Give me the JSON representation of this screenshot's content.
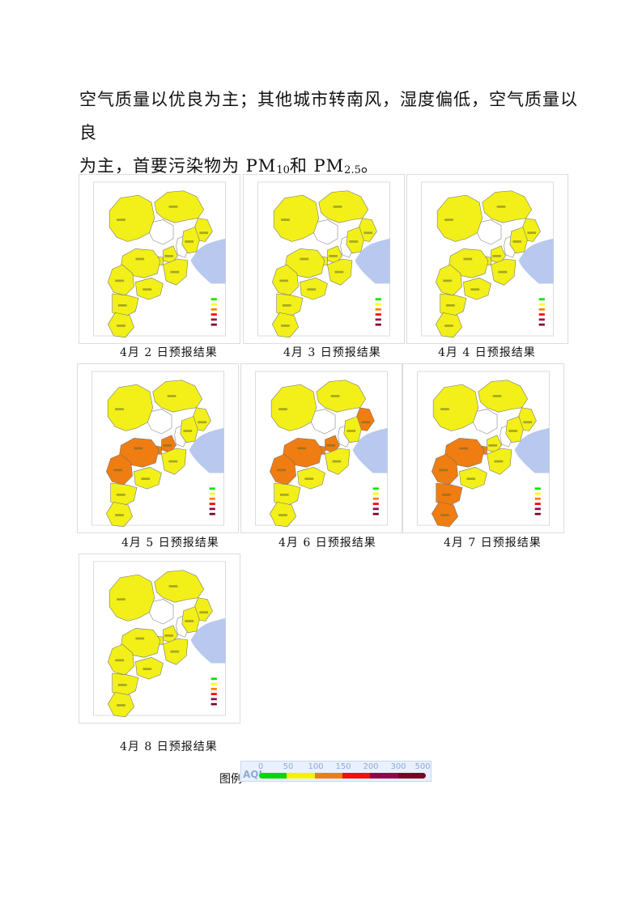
{
  "paragraph": {
    "line1": "空气质量以优良为主；其他城市转南风，湿度偏低，空气质量以良",
    "line2_a": "为主，首要污染物为 PM",
    "sub1": "10",
    "line2_b": "和 PM",
    "sub2": "2.5",
    "line2_c": "。"
  },
  "colors": {
    "good": "#00e400",
    "moderate": "#ffff00",
    "light": "#ff7e00",
    "medium": "#ff0000",
    "heavy": "#99004c",
    "severe": "#7e0023",
    "map_yellow": "#f2f018",
    "map_orange": "#f07d12",
    "sea": "#b8c8ee"
  },
  "maps": [
    {
      "caption": "4月 2 日预报结果",
      "orange": []
    },
    {
      "caption": "4月 3 日预报结果",
      "orange": []
    },
    {
      "caption": "4月 4 日预报结果",
      "orange": []
    },
    {
      "caption": "4月 5 日预报结果",
      "orange": [
        "baoding",
        "shijiazhuang",
        "langfang",
        "xiongan"
      ]
    },
    {
      "caption": "4月 6 日预报结果",
      "orange": [
        "baoding",
        "shijiazhuang",
        "langfang",
        "xiongan",
        "qinhuangdao"
      ]
    },
    {
      "caption": "4月 7 日预报结果",
      "orange": [
        "baoding",
        "shijiazhuang",
        "xingtai",
        "handan",
        "xiongan"
      ]
    },
    {
      "caption": "4月 8 日预报结果",
      "orange": []
    }
  ],
  "legend": {
    "label": "图例",
    "aqi": "AQI",
    "ticks": [
      "0",
      "50",
      "100",
      "150",
      "200",
      "300",
      "500"
    ]
  }
}
